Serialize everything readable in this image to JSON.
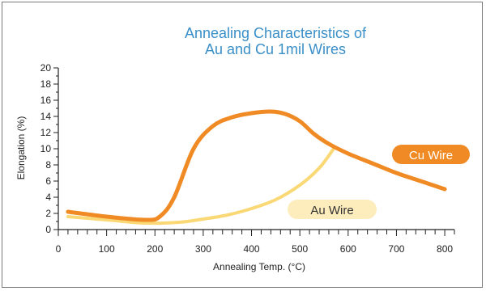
{
  "chart_data": {
    "type": "line",
    "title": [
      "Annealing Characteristics of",
      "Au and Cu 1mil Wires"
    ],
    "xlabel": "Annealing Temp. (°C)",
    "ylabel": "Elongation (%)",
    "xlim": [
      0,
      820
    ],
    "ylim": [
      0,
      20
    ],
    "xticks": [
      0,
      100,
      200,
      300,
      400,
      500,
      600,
      700,
      800
    ],
    "yticks": [
      0,
      2,
      4,
      6,
      8,
      10,
      12,
      14,
      16,
      18,
      20
    ],
    "grid": false,
    "series": [
      {
        "name": "Cu Wire",
        "color": "#f08a24",
        "x": [
          20,
          100,
          180,
          210,
          240,
          280,
          320,
          360,
          400,
          440,
          470,
          500,
          530,
          560,
          600,
          650,
          700,
          750,
          800
        ],
        "y": [
          2.2,
          1.6,
          1.2,
          1.6,
          4.0,
          10.0,
          12.8,
          13.9,
          14.4,
          14.6,
          14.3,
          13.4,
          11.8,
          10.6,
          9.4,
          8.2,
          7.0,
          6.0,
          5.0
        ]
      },
      {
        "name": "Au Wire",
        "color": "#fbd876",
        "x": [
          20,
          100,
          180,
          250,
          300,
          350,
          400,
          450,
          500,
          540,
          570
        ],
        "y": [
          1.6,
          1.2,
          0.8,
          0.9,
          1.3,
          1.8,
          2.6,
          3.7,
          5.5,
          7.6,
          10.0
        ]
      }
    ]
  }
}
